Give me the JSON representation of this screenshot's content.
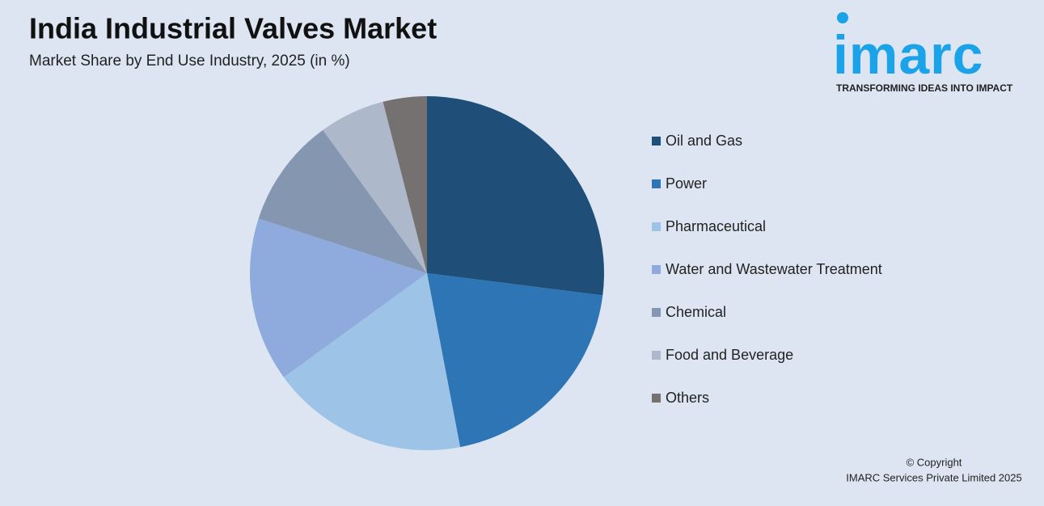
{
  "chart_data": {
    "type": "pie",
    "title": "India Industrial Valves Market",
    "subtitle": "Market Share by End Use Industry, 2025 (in %)",
    "categories": [
      "Oil and Gas",
      "Power",
      "Pharmaceutical",
      "Water and Wastewater Treatment",
      "Chemical",
      "Food and Beverage",
      "Others"
    ],
    "values": [
      27,
      20,
      18,
      15,
      10,
      6,
      4
    ],
    "colors": [
      "#1f4e79",
      "#2e75b6",
      "#9dc3e6",
      "#8faadc",
      "#8496b0",
      "#adb9ca",
      "#767171"
    ],
    "legend": "right"
  },
  "logo": {
    "name": "imarc",
    "tagline": "TRANSFORMING IDEAS INTO IMPACT"
  },
  "footer": {
    "copyright": "© Copyright",
    "company": "IMARC Services Private Limited 2025"
  }
}
